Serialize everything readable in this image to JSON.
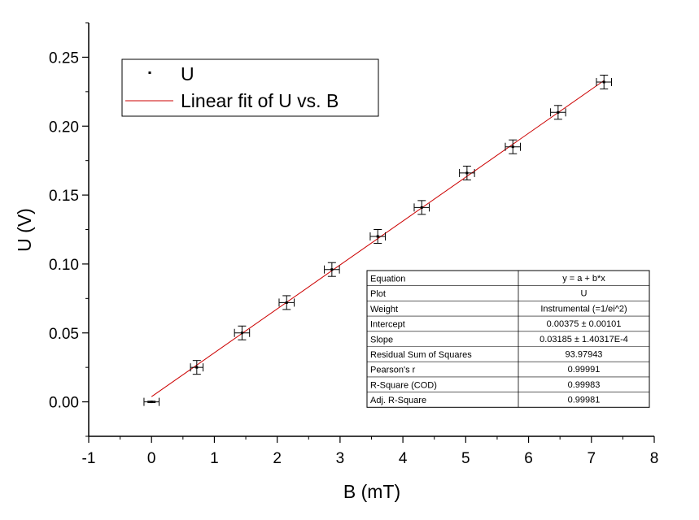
{
  "chart_data": {
    "type": "scatter",
    "xlabel": "B (mT)",
    "ylabel": "U (V)",
    "xlim": [
      -1,
      8
    ],
    "ylim": [
      -0.025,
      0.275
    ],
    "xticks": [
      -1,
      0,
      1,
      2,
      3,
      4,
      5,
      6,
      7,
      8
    ],
    "xtick_labels": [
      "-1",
      "0",
      "1",
      "2",
      "3",
      "4",
      "5",
      "6",
      "7",
      "8"
    ],
    "yticks": [
      0,
      0.05,
      0.1,
      0.15,
      0.2,
      0.25
    ],
    "ytick_labels": [
      "0.00",
      "0.05",
      "0.10",
      "0.15",
      "0.20",
      "0.25"
    ],
    "grid": false,
    "legend_placement": "top-left",
    "series": [
      {
        "name": "U",
        "kind": "scatter",
        "color": "#000000",
        "x": [
          0.0,
          0.72,
          1.44,
          2.15,
          2.87,
          3.6,
          4.3,
          5.02,
          5.75,
          6.47,
          7.2
        ],
        "y": [
          0.0,
          0.025,
          0.05,
          0.072,
          0.096,
          0.12,
          0.141,
          0.166,
          0.185,
          0.21,
          0.232
        ],
        "x_err": [
          0.12,
          0.1,
          0.12,
          0.12,
          0.12,
          0.12,
          0.12,
          0.12,
          0.12,
          0.12,
          0.12
        ],
        "y_err": [
          0.0005,
          0.005,
          0.005,
          0.005,
          0.005,
          0.005,
          0.005,
          0.005,
          0.005,
          0.005,
          0.005
        ]
      },
      {
        "name": "Linear fit of U vs. B",
        "kind": "line",
        "color": "#cc0000",
        "x": [
          0.0,
          7.2
        ],
        "y": [
          0.00375,
          0.23307
        ]
      }
    ],
    "stats_table": [
      {
        "label": "Equation",
        "value": "y = a + b*x"
      },
      {
        "label": "Plot",
        "value": "U"
      },
      {
        "label": "Weight",
        "value": "Instrumental (=1/ei^2)"
      },
      {
        "label": "Intercept",
        "value": "0.00375 ± 0.00101"
      },
      {
        "label": "Slope",
        "value": "0.03185 ± 1.40317E-4"
      },
      {
        "label": "Residual Sum of Squares",
        "value": "93.97943"
      },
      {
        "label": "Pearson's r",
        "value": "0.99991"
      },
      {
        "label": "R-Square (COD)",
        "value": "0.99983"
      },
      {
        "label": "Adj. R-Square",
        "value": "0.99981"
      }
    ]
  }
}
